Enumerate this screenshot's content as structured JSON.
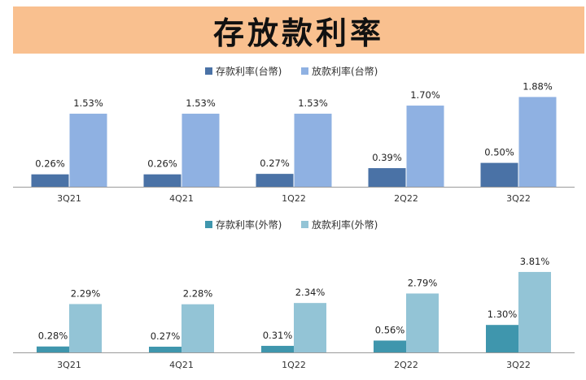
{
  "title": "存放款利率",
  "colors": {
    "title_bg": "#f9c08f",
    "twd_deposit": "#4a72a6",
    "twd_loan": "#8fb1e2",
    "fx_deposit": "#3f96ad",
    "fx_loan": "#93c4d6"
  },
  "chart_data": [
    {
      "type": "bar",
      "categories": [
        "3Q21",
        "4Q21",
        "1Q22",
        "2Q22",
        "3Q22"
      ],
      "series": [
        {
          "name": "存款利率(台幣)",
          "values": [
            0.26,
            0.26,
            0.27,
            0.39,
            0.5
          ],
          "labels": [
            "0.26%",
            "0.26%",
            "0.27%",
            "0.39%",
            "0.50%"
          ],
          "color": "#4a72a6"
        },
        {
          "name": "放款利率(台幣)",
          "values": [
            1.53,
            1.53,
            1.53,
            1.7,
            1.88
          ],
          "labels": [
            "1.53%",
            "1.53%",
            "1.53%",
            "1.70%",
            "1.88%"
          ],
          "color": "#8fb1e2"
        }
      ],
      "legend_position": "top-center",
      "grid": false
    },
    {
      "type": "bar",
      "categories": [
        "3Q21",
        "4Q21",
        "1Q22",
        "2Q22",
        "3Q22"
      ],
      "series": [
        {
          "name": "存款利率(外幣)",
          "values": [
            0.28,
            0.27,
            0.31,
            0.56,
            1.3
          ],
          "labels": [
            "0.28%",
            "0.27%",
            "0.31%",
            "0.56%",
            "1.30%"
          ],
          "color": "#3f96ad"
        },
        {
          "name": "放款利率(外幣)",
          "values": [
            2.29,
            2.28,
            2.34,
            2.79,
            3.81
          ],
          "labels": [
            "2.29%",
            "2.28%",
            "2.34%",
            "2.79%",
            "3.81%"
          ],
          "color": "#93c4d6"
        }
      ],
      "legend_position": "top-center",
      "grid": false
    }
  ]
}
